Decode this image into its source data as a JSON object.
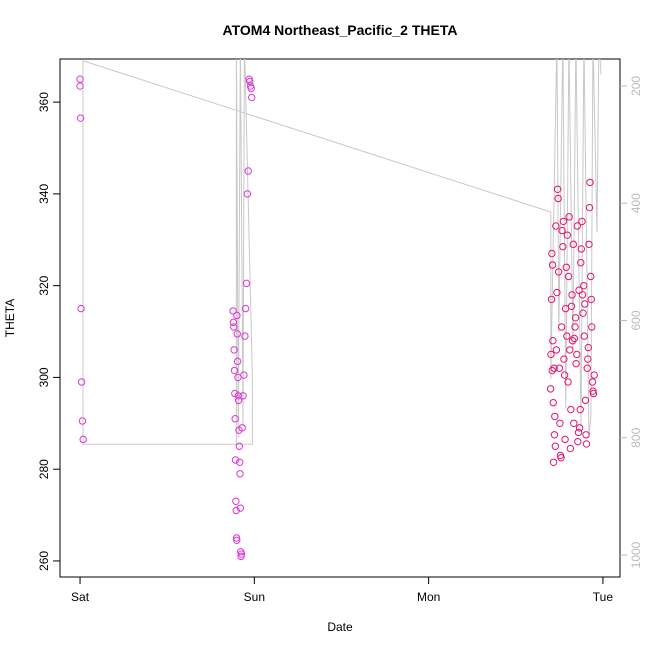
{
  "chart_data": {
    "type": "scatter",
    "title": "ATOM4 Northeast_Pacific_2 THETA",
    "x_label": "Date",
    "y_label": "THETA",
    "xlim": [
      -0.115,
      3.098
    ],
    "xticks": [
      {
        "value": 0,
        "label": "Sat"
      },
      {
        "value": 1,
        "label": "Sun"
      },
      {
        "value": 2,
        "label": "Mon"
      },
      {
        "value": 3,
        "label": "Tue"
      }
    ],
    "ylim": [
      256.5,
      369.4
    ],
    "yticks": [
      260,
      280,
      300,
      320,
      340,
      360
    ],
    "y2lim": [
      1037.5,
      154
    ],
    "y2ticks": [
      200,
      400,
      600,
      800,
      1000
    ],
    "y2_color": "#bbbbbb",
    "series": [
      {
        "color": "#e035d8",
        "x": [
          0.0,
          0.0,
          0.003,
          0.006,
          0.009,
          0.014,
          0.018,
          0.878,
          0.88,
          0.882,
          0.884,
          0.886,
          0.888,
          0.89,
          0.892,
          0.894,
          0.896,
          0.898,
          0.899,
          0.9,
          0.902,
          0.904,
          0.906,
          0.908,
          0.91,
          0.912,
          0.914,
          0.916,
          0.918,
          0.92,
          0.922,
          0.924,
          0.926,
          0.93,
          0.935,
          0.94,
          0.946,
          0.95,
          0.955,
          0.96,
          0.965,
          0.97,
          0.974,
          0.978,
          0.982,
          0.985
        ],
        "values": [
          365,
          363.5,
          356.5,
          315,
          299,
          290.5,
          286.5,
          314.5,
          312,
          311,
          306,
          301.5,
          296.5,
          291,
          282,
          273,
          271,
          265,
          264.5,
          313.5,
          309.5,
          303.5,
          300,
          296,
          295,
          288.5,
          285,
          281.5,
          279,
          271.5,
          262,
          261,
          261.5,
          289,
          296,
          300.5,
          309,
          315,
          320.5,
          340,
          345,
          365,
          364.5,
          363.5,
          363,
          361
        ]
      },
      {
        "color": "#e8136f",
        "x": [
          2.7,
          2.702,
          2.705,
          2.707,
          2.709,
          2.711,
          2.713,
          2.715,
          2.717,
          2.72,
          2.722,
          2.724,
          2.727,
          2.73,
          2.733,
          2.736,
          2.74,
          2.743,
          2.746,
          2.75,
          2.753,
          2.756,
          2.76,
          2.763,
          2.766,
          2.77,
          2.773,
          2.776,
          2.78,
          2.783,
          2.786,
          2.79,
          2.793,
          2.796,
          2.8,
          2.803,
          2.806,
          2.81,
          2.813,
          2.816,
          2.82,
          2.823,
          2.826,
          2.83,
          2.833,
          2.836,
          2.84,
          2.843,
          2.846,
          2.85,
          2.853,
          2.856,
          2.86,
          2.863,
          2.866,
          2.87,
          2.873,
          2.876,
          2.88,
          2.883,
          2.886,
          2.89,
          2.893,
          2.896,
          2.9,
          2.903,
          2.906,
          2.91,
          2.913,
          2.916,
          2.92,
          2.923,
          2.926,
          2.93,
          2.933,
          2.936,
          2.94,
          2.943,
          2.946,
          2.95
        ],
        "values": [
          297.5,
          305,
          317,
          327,
          301.5,
          324.5,
          308,
          294.5,
          281.5,
          302,
          287.5,
          291.5,
          285,
          333,
          306,
          318.5,
          341,
          339,
          323,
          302,
          290,
          283,
          282.5,
          311,
          332,
          328.5,
          334,
          304,
          300.5,
          286.5,
          315,
          324,
          309,
          331,
          299,
          322,
          335,
          306,
          284.5,
          293,
          315.5,
          318,
          308,
          329,
          290,
          308.5,
          311,
          313,
          303,
          305,
          333,
          286,
          288,
          319,
          289,
          293,
          325,
          328,
          334,
          318,
          314,
          320,
          309,
          316,
          295,
          287.5,
          285.5,
          302,
          304,
          306.5,
          329,
          337,
          342.5,
          322,
          317,
          311,
          299,
          297,
          296.5,
          300.5
        ]
      }
    ],
    "line": {
      "axis": "y2",
      "color": "#c8c8c8",
      "x": [
        0.017,
        2.701,
        2.701,
        2.713,
        2.736,
        2.747,
        2.77,
        2.787,
        2.805,
        2.828,
        2.845,
        2.874,
        2.891,
        2.92,
        2.931,
        2.943,
        2.966,
        2.977,
        2.989,
        null,
        0.017,
        0.017,
        0.983,
        0.989,
        0.989,
        0.943,
        0.935,
        0.92,
        0.908,
        0.897,
        0.897
      ],
      "values": [
        157,
        415,
        700,
        500,
        120,
        620,
        120,
        750,
        120,
        650,
        120,
        780,
        120,
        800,
        760,
        120,
        450,
        120,
        180,
        null,
        157,
        811,
        811,
        811,
        700,
        120,
        780,
        120,
        800,
        120,
        811
      ]
    }
  }
}
